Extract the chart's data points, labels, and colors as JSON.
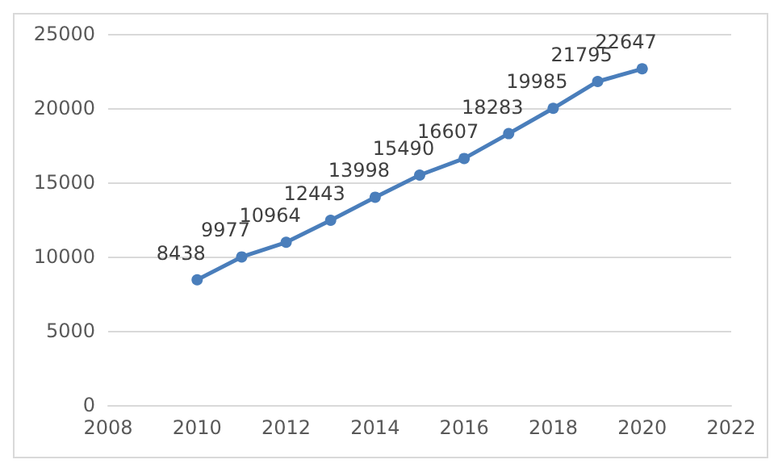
{
  "chart_data": {
    "type": "line",
    "x": [
      2010,
      2011,
      2012,
      2013,
      2014,
      2015,
      2016,
      2017,
      2018,
      2019,
      2020
    ],
    "series": [
      {
        "color": "#4a7ebb",
        "values": [
          8438,
          9977,
          10964,
          12443,
          13998,
          15490,
          16607,
          18283,
          19985,
          21795,
          22647
        ]
      }
    ],
    "xlim": [
      2008,
      2022
    ],
    "xticks": [
      2008,
      2010,
      2012,
      2014,
      2016,
      2018,
      2020,
      2022
    ],
    "ylim": [
      0,
      25000
    ],
    "yticks": [
      0,
      5000,
      10000,
      15000,
      20000,
      25000
    ],
    "grid": "y",
    "marker": "circle",
    "line_style": "solid",
    "data_labels": true
  }
}
